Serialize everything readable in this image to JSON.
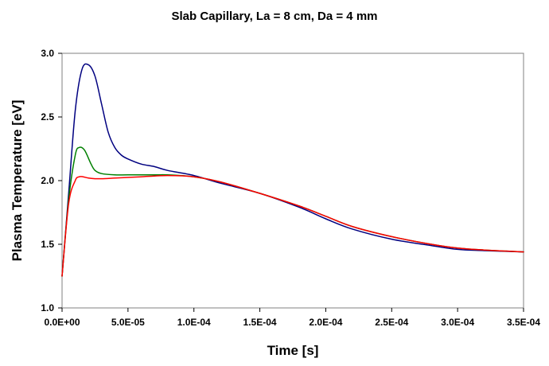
{
  "chart_data": {
    "type": "line",
    "title": "Slab Capillary, La = 8 cm, Da = 4 mm",
    "xlabel": "Time [s]",
    "ylabel": "Plasma Temperature [eV]",
    "xlim": [
      0,
      0.00035
    ],
    "ylim": [
      1.0,
      3.0
    ],
    "x_tick_labels": [
      "0.0E+00",
      "5.0E-05",
      "1.0E-04",
      "1.5E-04",
      "2.0E-04",
      "2.5E-04",
      "3.0E-04",
      "3.5E-04"
    ],
    "y_tick_labels": [
      "1.0",
      "1.5",
      "2.0",
      "2.5",
      "3.0"
    ],
    "grid": false,
    "legend": "none",
    "series": [
      {
        "color": "#000080",
        "x": [
          0,
          5e-06,
          1e-05,
          1.5e-05,
          2e-05,
          2.5e-05,
          3e-05,
          3.5e-05,
          4e-05,
          4.5e-05,
          5e-05,
          6e-05,
          7e-05,
          8e-05,
          0.0001,
          0.00012,
          0.00015,
          0.00018,
          0.0002,
          0.00022,
          0.00025,
          0.00028,
          0.0003,
          0.00032,
          0.00035
        ],
        "y": [
          1.25,
          1.9,
          2.55,
          2.87,
          2.91,
          2.82,
          2.6,
          2.38,
          2.26,
          2.2,
          2.17,
          2.13,
          2.11,
          2.08,
          2.04,
          1.98,
          1.9,
          1.79,
          1.7,
          1.62,
          1.54,
          1.49,
          1.46,
          1.45,
          1.44
        ]
      },
      {
        "color": "#008000",
        "x": [
          0,
          5e-06,
          1e-05,
          1.3e-05,
          1.7e-05,
          2.2e-05,
          2.5e-05,
          3e-05,
          4e-05,
          5e-05,
          7e-05,
          8e-05,
          0.0001,
          0.00012,
          0.00015,
          0.00018,
          0.0002,
          0.00022,
          0.00025,
          0.00028,
          0.0003,
          0.00032,
          0.00035
        ],
        "y": [
          1.25,
          1.85,
          2.2,
          2.26,
          2.24,
          2.13,
          2.08,
          2.055,
          2.045,
          2.045,
          2.045,
          2.045,
          2.03,
          1.99,
          1.9,
          1.8,
          1.72,
          1.64,
          1.56,
          1.5,
          1.47,
          1.455,
          1.44
        ]
      },
      {
        "color": "#ff0000",
        "x": [
          0,
          5e-06,
          1e-05,
          1.3e-05,
          1.6e-05,
          2e-05,
          2.5e-05,
          3e-05,
          4e-05,
          5e-05,
          6e-05,
          8e-05,
          0.0001,
          0.00012,
          0.00015,
          0.00018,
          0.0002,
          0.00022,
          0.00025,
          0.00028,
          0.0003,
          0.00032,
          0.00035
        ],
        "y": [
          1.25,
          1.82,
          2.0,
          2.03,
          2.03,
          2.02,
          2.015,
          2.015,
          2.02,
          2.025,
          2.03,
          2.04,
          2.03,
          1.99,
          1.9,
          1.8,
          1.72,
          1.64,
          1.56,
          1.5,
          1.47,
          1.455,
          1.44
        ]
      }
    ]
  }
}
